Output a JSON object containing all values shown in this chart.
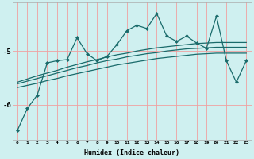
{
  "title": "",
  "xlabel": "Humidex (Indice chaleur)",
  "ylabel": "",
  "bg_color": "#cff0f0",
  "line_color": "#1a6b6b",
  "grid_color": "#f0a0a0",
  "xlim": [
    -0.5,
    23.5
  ],
  "ylim": [
    -6.65,
    -4.1
  ],
  "yticks": [
    -6,
    -5
  ],
  "xticks": [
    0,
    1,
    2,
    3,
    4,
    5,
    6,
    7,
    8,
    9,
    10,
    11,
    12,
    13,
    14,
    15,
    16,
    17,
    18,
    19,
    20,
    21,
    22,
    23
  ],
  "main_series": [
    -6.48,
    -6.07,
    -5.82,
    -5.22,
    -5.18,
    -5.16,
    -4.75,
    -5.05,
    -5.18,
    -5.1,
    -4.88,
    -4.62,
    -4.52,
    -4.58,
    -4.3,
    -4.72,
    -4.82,
    -4.72,
    -4.85,
    -4.95,
    -4.35,
    -5.18,
    -5.58,
    -5.18
  ],
  "smooth1": [
    -5.58,
    -5.52,
    -5.46,
    -5.41,
    -5.36,
    -5.3,
    -5.25,
    -5.2,
    -5.16,
    -5.11,
    -5.07,
    -5.04,
    -5.0,
    -4.97,
    -4.94,
    -4.92,
    -4.9,
    -4.88,
    -4.86,
    -4.85,
    -4.84,
    -4.84,
    -4.84,
    -4.84
  ],
  "smooth2": [
    -5.61,
    -5.56,
    -5.51,
    -5.46,
    -5.41,
    -5.36,
    -5.31,
    -5.27,
    -5.22,
    -5.18,
    -5.15,
    -5.11,
    -5.08,
    -5.05,
    -5.03,
    -5.0,
    -4.98,
    -4.96,
    -4.95,
    -4.94,
    -4.93,
    -4.93,
    -4.93,
    -4.93
  ],
  "smooth3": [
    -5.68,
    -5.64,
    -5.6,
    -5.55,
    -5.51,
    -5.46,
    -5.42,
    -5.38,
    -5.34,
    -5.3,
    -5.26,
    -5.23,
    -5.2,
    -5.17,
    -5.14,
    -5.12,
    -5.1,
    -5.08,
    -5.06,
    -5.05,
    -5.04,
    -5.04,
    -5.04,
    -5.04
  ]
}
